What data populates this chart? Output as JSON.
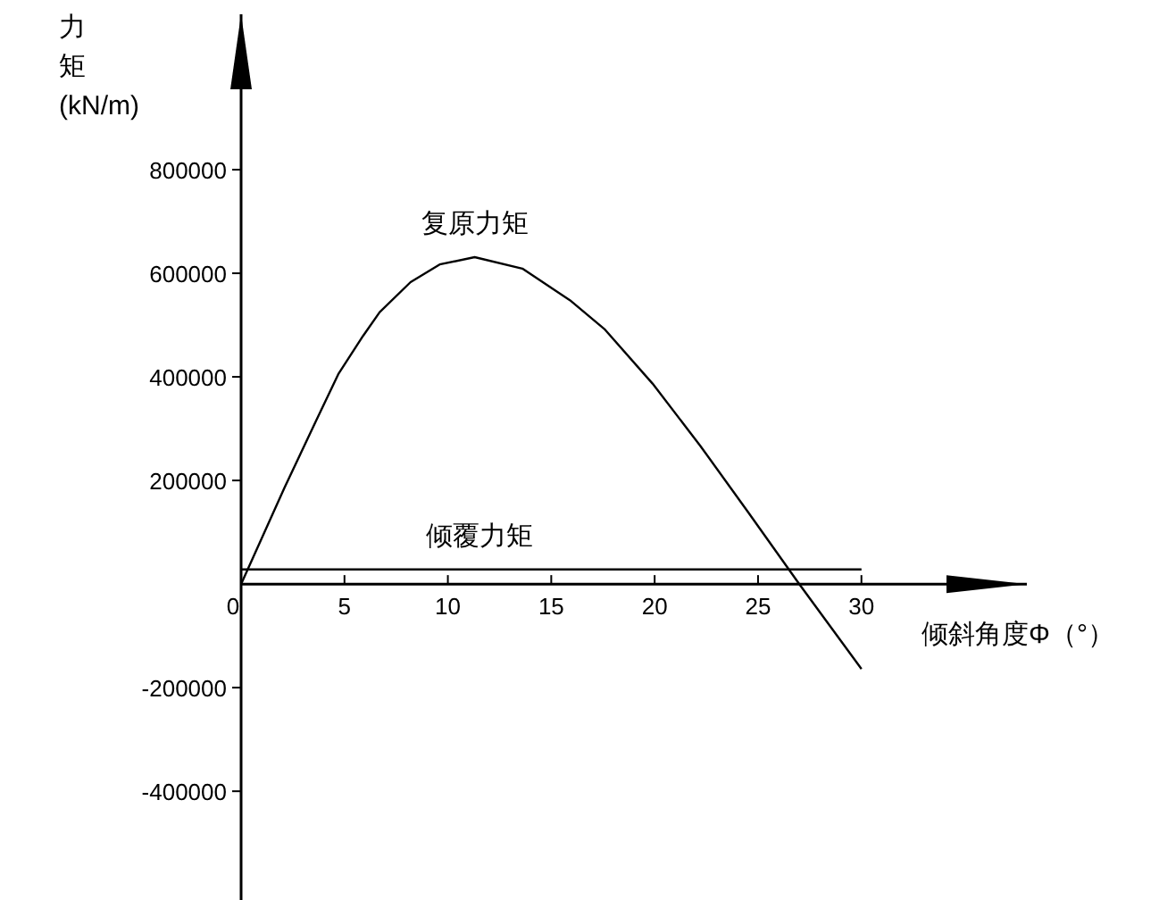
{
  "chart_data": {
    "type": "line",
    "xlabel": "倾斜角度Φ（°）",
    "ylabel": "力矩(kN/m)",
    "xlim": [
      0,
      38
    ],
    "ylim": [
      -610000,
      1100000
    ],
    "xticks": [
      0,
      5,
      10,
      15,
      20,
      25,
      30
    ],
    "yticks": [
      -400000,
      -200000,
      200000,
      400000,
      600000,
      800000
    ],
    "marker": "none",
    "line_style": "solid",
    "series": [
      {
        "name": "复原力矩",
        "color": "#000000",
        "x": [
          0,
          2.1,
          3.6,
          4.7,
          5.9,
          6.7,
          8.2,
          9.6,
          11.3,
          13.6,
          15.9,
          17.6,
          19.9,
          22.2,
          24.5,
          27,
          30
        ],
        "values": [
          0,
          186000,
          313000,
          405000,
          479000,
          525000,
          583000,
          617000,
          631000,
          609000,
          548000,
          491000,
          387000,
          267000,
          140000,
          0,
          -164000
        ]
      },
      {
        "name": "倾覆力矩",
        "color": "#000000",
        "x": [
          0,
          30
        ],
        "values": [
          28000,
          28000
        ]
      }
    ]
  }
}
